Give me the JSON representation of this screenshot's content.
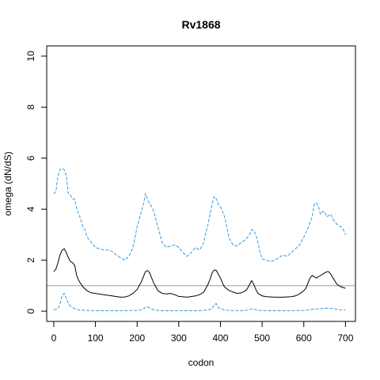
{
  "chart_data": {
    "type": "line",
    "title": "Rv1868",
    "xlabel": "codon",
    "ylabel": "omega (dN/dS)",
    "xlim": [
      -17,
      724
    ],
    "ylim": [
      -0.4,
      10.4
    ],
    "x_ticks": [
      0,
      100,
      200,
      300,
      400,
      500,
      600,
      700
    ],
    "y_ticks": [
      0,
      2,
      4,
      6,
      8,
      10
    ],
    "grid": false,
    "reference_line": {
      "y": 1,
      "color": "#c080c0"
    },
    "colors": {
      "mean": "#000000",
      "bounds": "#3399dd",
      "reference": "#c080c0"
    },
    "series": [
      {
        "role": "upper",
        "style": "dashed",
        "x": [
          0,
          5,
          10,
          15,
          20,
          25,
          30,
          35,
          40,
          45,
          50,
          55,
          60,
          65,
          70,
          75,
          80,
          90,
          100,
          110,
          120,
          130,
          140,
          150,
          160,
          170,
          180,
          190,
          195,
          200,
          205,
          210,
          215,
          220,
          225,
          230,
          235,
          240,
          245,
          250,
          255,
          260,
          270,
          280,
          290,
          300,
          310,
          320,
          330,
          340,
          350,
          360,
          365,
          370,
          375,
          380,
          385,
          390,
          395,
          400,
          405,
          410,
          415,
          420,
          430,
          440,
          450,
          460,
          470,
          475,
          480,
          485,
          490,
          495,
          500,
          510,
          520,
          530,
          540,
          550,
          560,
          570,
          580,
          590,
          600,
          610,
          620,
          625,
          630,
          635,
          640,
          645,
          650,
          655,
          660,
          665,
          670,
          675,
          680,
          685,
          690,
          695,
          700
        ],
        "values": [
          4.6,
          4.7,
          5.3,
          5.55,
          5.6,
          5.55,
          5.3,
          4.6,
          4.55,
          4.4,
          4.4,
          4.0,
          3.8,
          3.6,
          3.3,
          3.2,
          2.9,
          2.7,
          2.5,
          2.45,
          2.4,
          2.4,
          2.35,
          2.2,
          2.1,
          2.0,
          2.15,
          2.5,
          2.9,
          3.3,
          3.6,
          3.9,
          4.2,
          4.6,
          4.4,
          4.2,
          4.1,
          3.9,
          3.6,
          3.3,
          3.0,
          2.7,
          2.5,
          2.55,
          2.6,
          2.5,
          2.3,
          2.15,
          2.3,
          2.5,
          2.4,
          2.7,
          3.1,
          3.4,
          3.8,
          4.2,
          4.5,
          4.4,
          4.2,
          4.1,
          3.9,
          3.7,
          3.3,
          2.9,
          2.6,
          2.55,
          2.7,
          2.8,
          3.0,
          3.2,
          3.15,
          3.0,
          2.7,
          2.3,
          2.05,
          2.0,
          1.95,
          2.0,
          2.1,
          2.2,
          2.15,
          2.3,
          2.45,
          2.6,
          2.9,
          3.25,
          3.7,
          4.2,
          4.25,
          4.1,
          3.8,
          3.9,
          3.9,
          3.7,
          3.75,
          3.8,
          3.6,
          3.5,
          3.4,
          3.35,
          3.3,
          3.2,
          3.0
        ]
      },
      {
        "role": "mean",
        "style": "solid",
        "x": [
          0,
          5,
          10,
          15,
          20,
          25,
          30,
          35,
          40,
          45,
          50,
          55,
          60,
          70,
          80,
          90,
          100,
          120,
          140,
          160,
          170,
          180,
          190,
          200,
          205,
          210,
          215,
          220,
          225,
          230,
          235,
          240,
          245,
          250,
          260,
          270,
          280,
          290,
          300,
          320,
          340,
          350,
          360,
          365,
          370,
          375,
          380,
          385,
          390,
          395,
          400,
          405,
          410,
          420,
          430,
          440,
          450,
          460,
          465,
          470,
          475,
          480,
          485,
          490,
          500,
          510,
          530,
          550,
          570,
          580,
          590,
          600,
          605,
          610,
          615,
          620,
          625,
          630,
          640,
          645,
          650,
          655,
          660,
          665,
          670,
          680,
          690,
          700
        ],
        "values": [
          1.55,
          1.65,
          1.9,
          2.2,
          2.4,
          2.45,
          2.3,
          2.1,
          1.95,
          1.9,
          1.8,
          1.4,
          1.2,
          0.95,
          0.8,
          0.72,
          0.7,
          0.65,
          0.6,
          0.55,
          0.56,
          0.6,
          0.7,
          0.85,
          1.0,
          1.15,
          1.35,
          1.55,
          1.6,
          1.5,
          1.3,
          1.1,
          0.95,
          0.8,
          0.7,
          0.68,
          0.7,
          0.65,
          0.58,
          0.55,
          0.6,
          0.65,
          0.75,
          0.9,
          1.05,
          1.25,
          1.5,
          1.62,
          1.6,
          1.45,
          1.3,
          1.1,
          0.95,
          0.82,
          0.75,
          0.7,
          0.72,
          0.8,
          0.9,
          1.05,
          1.2,
          1.05,
          0.85,
          0.7,
          0.6,
          0.57,
          0.55,
          0.55,
          0.57,
          0.6,
          0.68,
          0.8,
          0.9,
          1.1,
          1.3,
          1.4,
          1.35,
          1.3,
          1.4,
          1.45,
          1.5,
          1.55,
          1.55,
          1.45,
          1.3,
          1.05,
          0.95,
          0.9
        ]
      },
      {
        "role": "lower",
        "style": "dashed",
        "x": [
          0,
          10,
          15,
          20,
          25,
          30,
          35,
          40,
          50,
          60,
          80,
          100,
          150,
          200,
          210,
          215,
          220,
          225,
          230,
          240,
          260,
          300,
          350,
          370,
          380,
          385,
          390,
          395,
          400,
          420,
          450,
          470,
          475,
          480,
          490,
          520,
          560,
          600,
          610,
          620,
          640,
          660,
          670,
          690,
          700
        ],
        "values": [
          0.05,
          0.1,
          0.3,
          0.6,
          0.7,
          0.5,
          0.3,
          0.2,
          0.1,
          0.05,
          0.03,
          0.02,
          0.02,
          0.03,
          0.05,
          0.1,
          0.15,
          0.18,
          0.12,
          0.05,
          0.02,
          0.02,
          0.02,
          0.05,
          0.1,
          0.25,
          0.3,
          0.15,
          0.08,
          0.03,
          0.02,
          0.05,
          0.1,
          0.08,
          0.03,
          0.02,
          0.02,
          0.03,
          0.05,
          0.08,
          0.1,
          0.12,
          0.1,
          0.05,
          0.04
        ]
      }
    ]
  }
}
